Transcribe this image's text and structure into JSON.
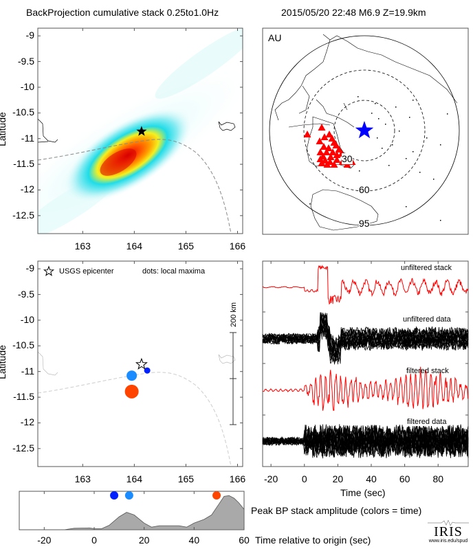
{
  "header": {
    "left_title": "BackProjection cumulative stack 0.25to1.0Hz",
    "right_title": "2015/05/20 22:48  M6.9  Z=19.9km"
  },
  "chart_data": [
    {
      "id": "bp-heatmap",
      "type": "heatmap",
      "title": "BackProjection cumulative stack 0.25to1.0Hz",
      "xlabel": "",
      "ylabel": "Latitude",
      "xlim": [
        162.13,
        166.1
      ],
      "ylim": [
        -12.85,
        -8.85
      ],
      "xticks": [
        "163",
        "164",
        "165",
        "166"
      ],
      "xtick_values": [
        163,
        164,
        165,
        166
      ],
      "yticks": [
        "-9",
        "-9.5",
        "-10",
        "-10.5",
        "-11",
        "-11.5",
        "-12",
        "-12.5"
      ],
      "ytick_values": [
        -9,
        -9.5,
        -10,
        -10.5,
        -11,
        -11.5,
        -12,
        -12.5
      ],
      "peak": {
        "lon": 163.75,
        "lat": -11.45
      },
      "epicenter": {
        "lon": 164.14,
        "lat": -10.86,
        "marker": "star"
      },
      "colormap": [
        "#ffffff",
        "#e0fbfb",
        "#9af0f3",
        "#22dce8",
        "#f3f41e",
        "#ffb100",
        "#ff5a00",
        "#e00000"
      ],
      "plate_boundary": "dashed-gray"
    },
    {
      "id": "station-map",
      "type": "scatter",
      "title": "AU",
      "distance_rings_deg": [
        30,
        60,
        95
      ],
      "ring_labels": [
        "30",
        "60",
        "95"
      ],
      "epicenter_marker": {
        "shape": "star",
        "color": "#0000ff"
      },
      "station_marker": {
        "shape": "triangle",
        "color": "#ff0000"
      },
      "station_count_approx": 30
    },
    {
      "id": "local-maxima",
      "type": "scatter",
      "ylabel": "Latitude",
      "xlim": [
        162.13,
        166.1
      ],
      "ylim": [
        -12.85,
        -8.85
      ],
      "xticks": [
        "163",
        "164",
        "165",
        "166"
      ],
      "xtick_values": [
        163,
        164,
        165,
        166
      ],
      "yticks": [
        "-9",
        "-9.5",
        "-10",
        "-10.5",
        "-11",
        "-11.5",
        "-12",
        "-12.5"
      ],
      "ytick_values": [
        -9,
        -9.5,
        -10,
        -10.5,
        -11,
        -11.5,
        -12,
        -12.5
      ],
      "legend": {
        "epicenter_label": "USGS epicenter",
        "dots_label": "dots: local maxima"
      },
      "epicenter": {
        "lon": 164.14,
        "lat": -10.86
      },
      "points": [
        {
          "lon": 164.25,
          "lat": -10.98,
          "time": 8,
          "size": "small",
          "color": "#0020ff"
        },
        {
          "lon": 163.95,
          "lat": -11.08,
          "time": 14,
          "size": "medium",
          "color": "#1a8cff"
        },
        {
          "lon": 163.95,
          "lat": -11.39,
          "time": 49,
          "size": "large",
          "color": "#ff4400"
        }
      ],
      "scale_bar": {
        "label": "200 km"
      }
    },
    {
      "id": "waveforms",
      "type": "line",
      "xlabel": "Time (sec)",
      "xlim": [
        -25,
        98
      ],
      "xticks": [
        "-20",
        "0",
        "20",
        "40",
        "60",
        "80"
      ],
      "xtick_values": [
        -20,
        0,
        20,
        40,
        60,
        80
      ],
      "traces": [
        {
          "name": "unfiltered stack",
          "color": "#ff0000"
        },
        {
          "name": "unfiltered data",
          "color": "#000000"
        },
        {
          "name": "filtered stack",
          "color": "#ff0000"
        },
        {
          "name": "filtered data",
          "color": "#000000"
        }
      ]
    },
    {
      "id": "peak-amplitude",
      "type": "area",
      "title": "Peak BP stack amplitude (colors = time)",
      "xlabel": "Time relative to origin (sec)",
      "xlim": [
        -30,
        60
      ],
      "xticks": [
        "-20",
        "0",
        "20",
        "40",
        "60"
      ],
      "xtick_values": [
        -20,
        0,
        20,
        40,
        60
      ],
      "x": [
        -30,
        -12,
        -8,
        -2,
        0,
        3,
        6,
        10,
        13,
        16,
        20,
        23,
        26,
        30,
        34,
        37,
        40,
        44,
        47,
        50,
        52,
        54,
        56,
        58,
        60
      ],
      "y": [
        0.0,
        0.0,
        0.04,
        0.05,
        0.03,
        0.03,
        0.12,
        0.35,
        0.47,
        0.4,
        0.18,
        0.07,
        0.11,
        0.11,
        0.11,
        0.07,
        0.18,
        0.28,
        0.4,
        0.7,
        0.9,
        0.92,
        0.85,
        0.72,
        0.55
      ],
      "ylim": [
        0,
        1
      ],
      "markers": [
        {
          "time": 8,
          "color": "#0020ff"
        },
        {
          "time": 14,
          "color": "#1a8cff"
        },
        {
          "time": 49,
          "color": "#ff4400"
        }
      ]
    }
  ],
  "logo": {
    "name": "IRIS",
    "url_text": "www.iris.edu/spud"
  }
}
